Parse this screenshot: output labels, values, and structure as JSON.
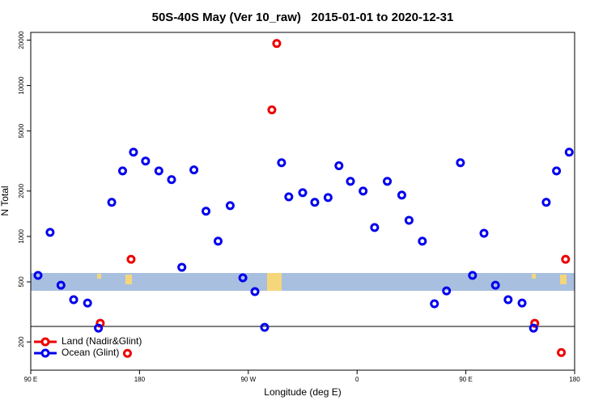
{
  "chart_data": {
    "type": "scatter",
    "title": "50S-40S May (Ver 10_raw)   2015-01-01 to 2020-12-31",
    "x_label": "Longitude (deg E)",
    "y_label": "N Total",
    "y_log": true,
    "legend": "bottomleft",
    "xlim": [
      90,
      540
    ],
    "ylim": [
      130,
      22500
    ],
    "xticks": [
      {
        "value": 90,
        "label": "90 E"
      },
      {
        "value": 180,
        "label": "180"
      },
      {
        "value": 270,
        "label": "90 W"
      },
      {
        "value": 360,
        "label": "0"
      },
      {
        "value": 450,
        "label": "90 E"
      },
      {
        "value": 540,
        "label": "180"
      }
    ],
    "yticks": [
      200,
      500,
      1000,
      2000,
      5000,
      10000,
      20000
    ],
    "series": [
      {
        "name": "Land (Nadir&Glint)",
        "color": "#ee0000",
        "x": [
          147.5,
          173,
          289.5,
          293.5,
          170,
          507,
          529,
          532.5
        ],
        "values": [
          266,
          706,
          6900,
          19000,
          168,
          266,
          170,
          706
        ]
      },
      {
        "name": "Ocean (Glint)",
        "color": "#0000ee",
        "x": [
          96,
          106,
          115,
          125.5,
          137,
          146,
          157,
          166,
          175,
          185,
          196,
          206.5,
          215,
          225,
          235,
          245,
          255,
          265.5,
          275.5,
          283.5,
          297.5,
          303.5,
          315,
          325,
          336,
          345,
          354.5,
          365,
          374.5,
          385,
          397,
          403,
          414,
          424,
          434,
          445.5,
          455.5,
          465,
          474.5,
          485,
          496.5,
          506,
          516.5,
          525,
          535.5
        ],
        "values": [
          552,
          1064,
          475,
          381,
          362,
          247,
          1683,
          2720,
          3620,
          3160,
          2720,
          2380,
          625,
          2760,
          1470,
          930,
          1600,
          532,
          431,
          250,
          3080,
          1830,
          1950,
          1683,
          1810,
          2940,
          2320,
          2000,
          1146,
          2320,
          1880,
          1280,
          930,
          358,
          436,
          3080,
          552,
          1050,
          475,
          381,
          362,
          247,
          1683,
          2720,
          3620
        ]
      }
    ]
  }
}
